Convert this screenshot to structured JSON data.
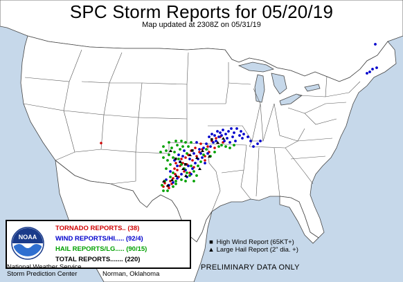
{
  "header": {
    "title": "SPC Storm Reports for 05/20/19",
    "subtitle": "Map updated at 2308Z on 05/31/19"
  },
  "colors": {
    "ocean": "#c6d8ea",
    "land": "#ffffff",
    "border": "#444444",
    "tornado": "#d00000",
    "wind": "#0000cc",
    "hail": "#00a000",
    "highwind": "#000000"
  },
  "legend": {
    "logo_text": "NOAA",
    "tornado": "TORNADO REPORTS.. (38)",
    "wind": "WIND REPORTS/HI..... (92/4)",
    "hail": "HAIL REPORTS/LG..... (90/15)",
    "total": "TOTAL REPORTS....... (220)",
    "agency_line1": "National Weather Service",
    "agency_line2": "Storm Prediction Center",
    "location": "Norman, Oklahoma"
  },
  "key": {
    "high_wind_symbol": "■",
    "high_wind_label": "High Wind Report (65KT+)",
    "large_hail_symbol": "▲",
    "large_hail_label": "Large Hail Report (2\" dia. +)"
  },
  "footer": {
    "preliminary": "PRELIMINARY DATA ONLY"
  },
  "report_counts": {
    "tornado": 38,
    "wind": 92,
    "wind_high": 4,
    "hail": 90,
    "hail_large": 15,
    "total": 220
  }
}
